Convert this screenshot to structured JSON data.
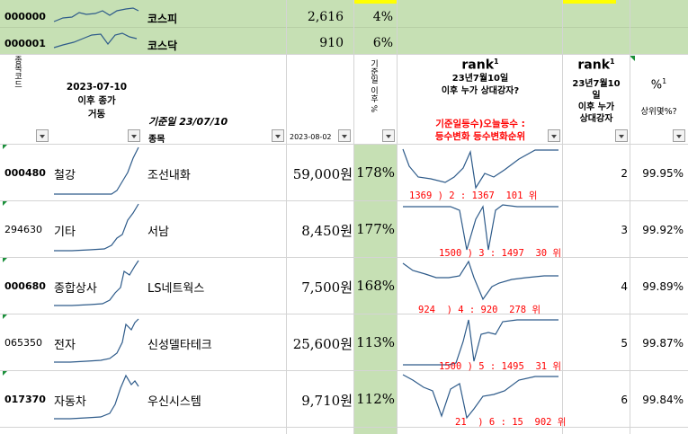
{
  "index_rows": [
    {
      "code": "000000",
      "name": "코스피",
      "value": "2,616",
      "pct": "4%"
    },
    {
      "code": "000001",
      "name": "코스닥",
      "value": "910",
      "pct": "6%"
    }
  ],
  "headers": {
    "stock_code_vertical": "종목코드",
    "since_line1": "2023-07-10",
    "since_line2": "이후 종가",
    "since_line3": "거동",
    "base_date": "기준일 23/07/10",
    "item": "종목",
    "date_col": "2023-08-02",
    "pct_vertical": "기준일 이후 %",
    "rank_title": "rank",
    "rank_sup": "1",
    "rank_sub1": "23년7월10일",
    "rank_sub2": "이후 누가 상대강자?",
    "rank_red1": "기준일등수)오늘등수 :",
    "rank_red2": "등수변화 등수변화순위",
    "rank2_title": "rank",
    "rank2_sup": "1",
    "rank2_sub1": "23년7월10",
    "rank2_sub2": "일",
    "rank2_sub3": "이후 누가",
    "rank2_sub4": "상대강자",
    "pctile_title": "%",
    "pctile_sup": "1",
    "pctile_sub": "상위몇%?"
  },
  "rows": [
    {
      "code": "000480",
      "sector": "철강",
      "name": "조선내화",
      "price": "59,000원",
      "pct": "178%",
      "rank_text": "1369 ) 2 : 1367  101 위",
      "rank": "2",
      "pctile": "99.95%"
    },
    {
      "code": "294630",
      "sector": "기타",
      "name": "서남",
      "price": "8,450원",
      "pct": "177%",
      "rank_text": "1500 ) 3 : 1497  30 위",
      "rank": "3",
      "pctile": "99.92%"
    },
    {
      "code": "000680",
      "sector": "종합상사",
      "name": "LS네트웍스",
      "price": "7,500원",
      "pct": "168%",
      "rank_text": "924  ) 4 : 920  278 위",
      "rank": "4",
      "pctile": "99.89%"
    },
    {
      "code": "065350",
      "sector": "전자",
      "name": "신성델타테크",
      "price": "25,600원",
      "pct": "113%",
      "rank_text": "1500 ) 5 : 1495  31 위",
      "rank": "5",
      "pctile": "99.87%"
    },
    {
      "code": "017370",
      "sector": "자동차",
      "name": "우신시스템",
      "price": "9,710원",
      "pct": "112%",
      "rank_text": "21  ) 6 : 15  902 위",
      "rank": "6",
      "pctile": "99.84%"
    }
  ],
  "colors": {
    "green": "#c6e0b4",
    "yellow": "#ffff00",
    "spark": "#2e5b8a",
    "red": "#ff0000"
  }
}
